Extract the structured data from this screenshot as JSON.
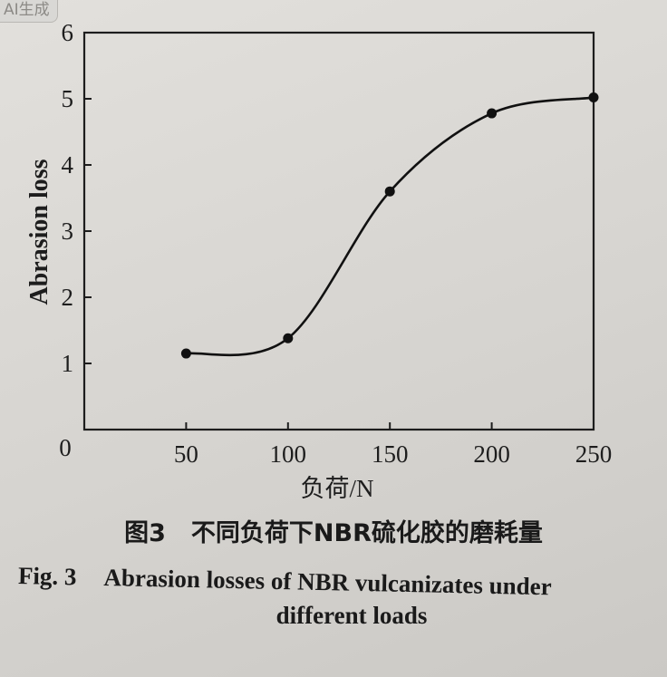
{
  "watermark": {
    "text": "AI生成"
  },
  "chart_data": {
    "type": "line",
    "title": "",
    "xlabel": "负荷/N",
    "ylabel": "Abrasion loss",
    "x": [
      50,
      100,
      150,
      200,
      250
    ],
    "series": [
      {
        "values": [
          1.15,
          1.38,
          3.6,
          4.78,
          5.02
        ]
      }
    ],
    "xlim": [
      0,
      250
    ],
    "ylim": [
      0,
      6
    ],
    "x_ticks": [
      "50",
      "100",
      "150",
      "200",
      "250"
    ],
    "y_ticks": [
      "1",
      "2",
      "3",
      "4",
      "5",
      "6"
    ],
    "origin_label": "0",
    "smooth": true,
    "markers": "filled-circle",
    "grid": false
  },
  "caption": {
    "cn_number": "图3",
    "cn_text": "不同负荷下NBR硫化胶的磨耗量",
    "en_number": "Fig. 3",
    "en_text_line1": "Abrasion losses of NBR vulcanizates under",
    "en_text_line2": "different loads"
  }
}
